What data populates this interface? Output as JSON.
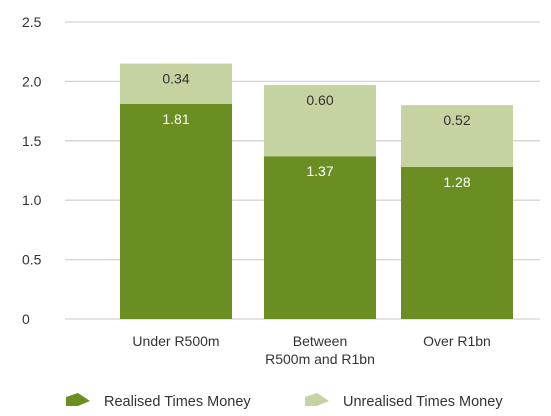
{
  "chart_data": {
    "type": "bar",
    "stacked": true,
    "categories": [
      "Under R500m",
      "Between R500m and R1bn",
      "Over R1bn"
    ],
    "category_lines": [
      [
        "Under R500m"
      ],
      [
        "Between",
        "R500m and R1bn"
      ],
      [
        "Over R1bn"
      ]
    ],
    "series": [
      {
        "name": "Realised Times Money",
        "values": [
          1.81,
          1.37,
          1.28
        ],
        "color": "#6b8e23",
        "label_color": "#ffffff"
      },
      {
        "name": "Unrealised Times Money",
        "values": [
          0.34,
          0.6,
          0.52
        ],
        "color": "#c5d3a0",
        "label_color": "#333333"
      }
    ],
    "data_labels": [
      [
        "1.81",
        "1.37",
        "1.28"
      ],
      [
        "0.34",
        "0.60",
        "0.52"
      ]
    ],
    "y_ticks": [
      "0",
      "0.5",
      "1.0",
      "1.5",
      "2.0",
      "2.5"
    ],
    "y_tick_values": [
      0,
      0.5,
      1.0,
      1.5,
      2.0,
      2.5
    ],
    "ylim": [
      0,
      2.5
    ],
    "grid": true,
    "legend_position": "bottom",
    "gridline_color": "#d3d3d3",
    "text_color": "#333333"
  }
}
